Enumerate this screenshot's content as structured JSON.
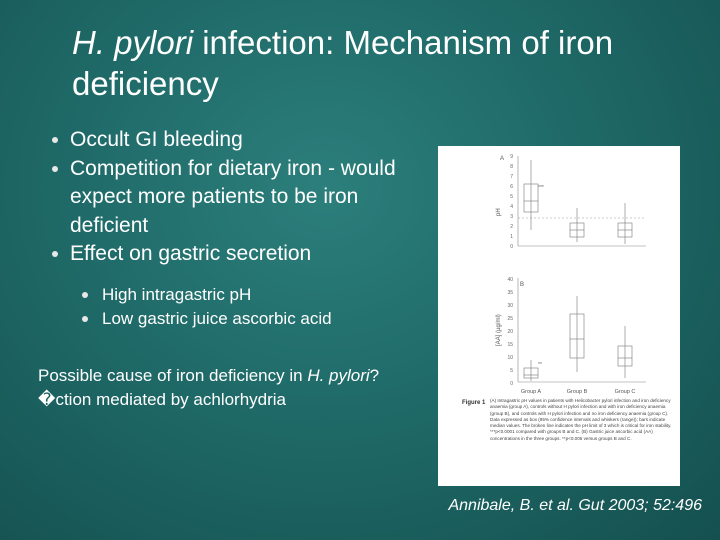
{
  "title": {
    "italic_part": "H. pylori",
    "rest": " infection: Mechanism of iron deficiency"
  },
  "bullets": [
    "Occult GI bleeding",
    "Competition for dietary iron - would expect more patients to be iron deficient",
    "Effect on gastric secretion"
  ],
  "sub_bullets": [
    "High intragastric pH",
    "Low gastric juice ascorbic acid"
  ],
  "note": {
    "prefix": "Possible cause of iron deficiency in ",
    "italic_part": "H. pylori",
    "garbled": "?�",
    "suffix": "ction mediated by achlorhydria"
  },
  "figure": {
    "panel_a": {
      "letter": "A",
      "ylabel": "pH",
      "yticks": [
        "9",
        "8",
        "7",
        "6",
        "5",
        "4",
        "3",
        "2",
        "1",
        "0"
      ],
      "annotation": "***"
    },
    "panel_b": {
      "letter": "B",
      "ylabel": "[AA] (µg/ml)",
      "yticks": [
        "40",
        "35",
        "30",
        "25",
        "20",
        "15",
        "10",
        "5",
        "0"
      ],
      "annotation": "**"
    },
    "groups": [
      "Group A",
      "Group B",
      "Group C"
    ],
    "caption_label": "Figure 1",
    "caption": "(A) Intragastric pH values in patients with Helicobacter pylori infection and iron deficiency anaemia (group A), controls without H pylori infection and with iron deficiency anaemia (group B), and controls with H pylori infection and no iron deficiency anaemia (group C). Data expressed as box (95% confidence intervals and whiskers (range)); bars indicate median values. The broken line indicates the pH limit of 3 which is critical for iron stability. ***p<0.0001 compared with groups B and C. (B) Gastric juice ascorbic acid (AA) concentrations in the three groups. **p<0.005 versus groups B and C."
  },
  "citation": "Annibale, B. et al. Gut 2003; 52:496"
}
